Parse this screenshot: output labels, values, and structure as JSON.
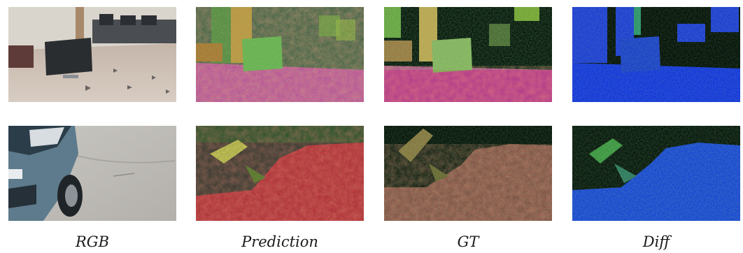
{
  "columns": [
    {
      "label": "RGB"
    },
    {
      "label": "Prediction"
    },
    {
      "label": "GT"
    },
    {
      "label": "Diff"
    }
  ],
  "rows": [
    {
      "scene": "indoor-lab-with-monitor"
    },
    {
      "scene": "outdoor-car-on-concrete"
    }
  ],
  "colors": {
    "prediction_floor": "#c03a9a",
    "prediction_wall": "#3c4a3a",
    "gt_floor": "#b03a8a",
    "diff_background": "#1028e0"
  }
}
